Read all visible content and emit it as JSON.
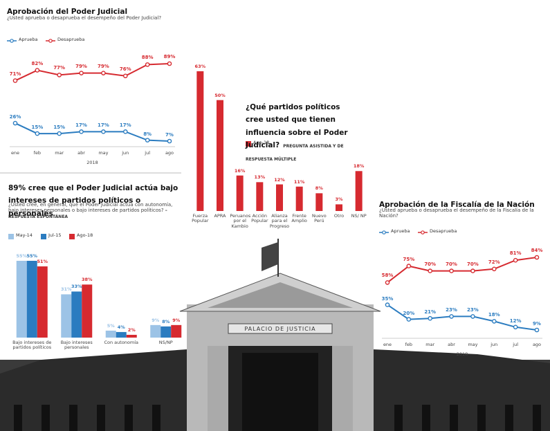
{
  "chart_data": [
    {
      "type": "line",
      "title": "Aprobación del Poder Judicial",
      "subtitle": "¿Usted aprueba o desaprueba el desempeño del Poder Judicial?",
      "categories": [
        "ene",
        "feb",
        "mar",
        "abr",
        "may",
        "jun",
        "jul",
        "ago"
      ],
      "x_label": "2018",
      "series": [
        {
          "name": "Aprueba",
          "color": "#2b7cc0",
          "values": [
            26,
            15,
            15,
            17,
            17,
            17,
            8,
            7
          ],
          "value_labels": [
            "26%",
            "15%",
            "15%",
            "17%",
            "17%",
            "17%",
            "8%",
            "7%"
          ]
        },
        {
          "name": "Desaprueba",
          "color": "#d62a30",
          "values": [
            71,
            82,
            77,
            79,
            79,
            76,
            88,
            89
          ],
          "value_labels": [
            "71%",
            "82%",
            "77%",
            "79%",
            "79%",
            "76%",
            "88%",
            "89%"
          ]
        }
      ]
    },
    {
      "type": "bar",
      "title": "¿Qué partidos políticos cree usted que tienen influencia sobre el Poder Judicial?",
      "note": "PREGUNTA ASISTIDA Y DE RESPUESTA MÚLTIPLE",
      "categories": [
        "Fuerza Popular",
        "APRA",
        "Peruanos por el Kambio",
        "Acción Popular",
        "Alianza para el Progreso",
        "Frente Amplio",
        "Nuevo Perú",
        "Otro",
        "NS/ NP"
      ],
      "series": [
        {
          "name": "Ago-18",
          "color": "#d62a30",
          "values": [
            63,
            50,
            16,
            13,
            12,
            11,
            8,
            3,
            18
          ],
          "value_labels": [
            "63%",
            "50%",
            "16%",
            "13%",
            "12%",
            "11%",
            "8%",
            "3%",
            "18%"
          ]
        }
      ]
    },
    {
      "type": "bar",
      "title": "89% cree que el Poder Judicial actúa bajo intereses de partidos políticos o personales",
      "subtitle": "¿Usted cree, en general, que el Poder Judicial actúa con autonomía, bajo intereses personales o bajo intereses de partidos políticos?",
      "note": "– RESPUESTA ESPONTÁNEA",
      "categories": [
        "Bajo intereses de partidos políticos",
        "Bajo intereses personales",
        "Con autonomía",
        "NS/NP"
      ],
      "series": [
        {
          "name": "May-14",
          "color": "#9cc3e6",
          "values": [
            55,
            31,
            5,
            9
          ],
          "value_labels": [
            "55%",
            "31%",
            "5%",
            "9%"
          ]
        },
        {
          "name": "Jul-15",
          "color": "#2b7cc0",
          "values": [
            55,
            33,
            4,
            8
          ],
          "value_labels": [
            "55%",
            "33%",
            "4%",
            "8%"
          ]
        },
        {
          "name": "Ago-18",
          "color": "#d62a30",
          "values": [
            51,
            38,
            2,
            9
          ],
          "value_labels": [
            "51%",
            "38%",
            "2%",
            "9%"
          ]
        }
      ]
    },
    {
      "type": "line",
      "title": "Aprobación de la Fiscalía de la Nación",
      "subtitle": "¿Usted aprueba o desaprueba el desempeño de la Fiscalía de la Nación?",
      "categories": [
        "ene",
        "feb",
        "mar",
        "abr",
        "may",
        "jun",
        "jul",
        "ago"
      ],
      "x_label": "2018",
      "series": [
        {
          "name": "Aprueba",
          "color": "#2b7cc0",
          "values": [
            35,
            20,
            21,
            23,
            23,
            18,
            12,
            9
          ],
          "value_labels": [
            "35%",
            "20%",
            "21%",
            "23%",
            "23%",
            "18%",
            "12%",
            "9%"
          ]
        },
        {
          "name": "Desaprueba",
          "color": "#d62a30",
          "values": [
            58,
            75,
            70,
            70,
            70,
            72,
            81,
            84
          ],
          "value_labels": [
            "58%",
            "75%",
            "70%",
            "70%",
            "70%",
            "72%",
            "81%",
            "84%"
          ]
        }
      ]
    }
  ],
  "background_sign": "PALACIO DE JUSTICIA"
}
